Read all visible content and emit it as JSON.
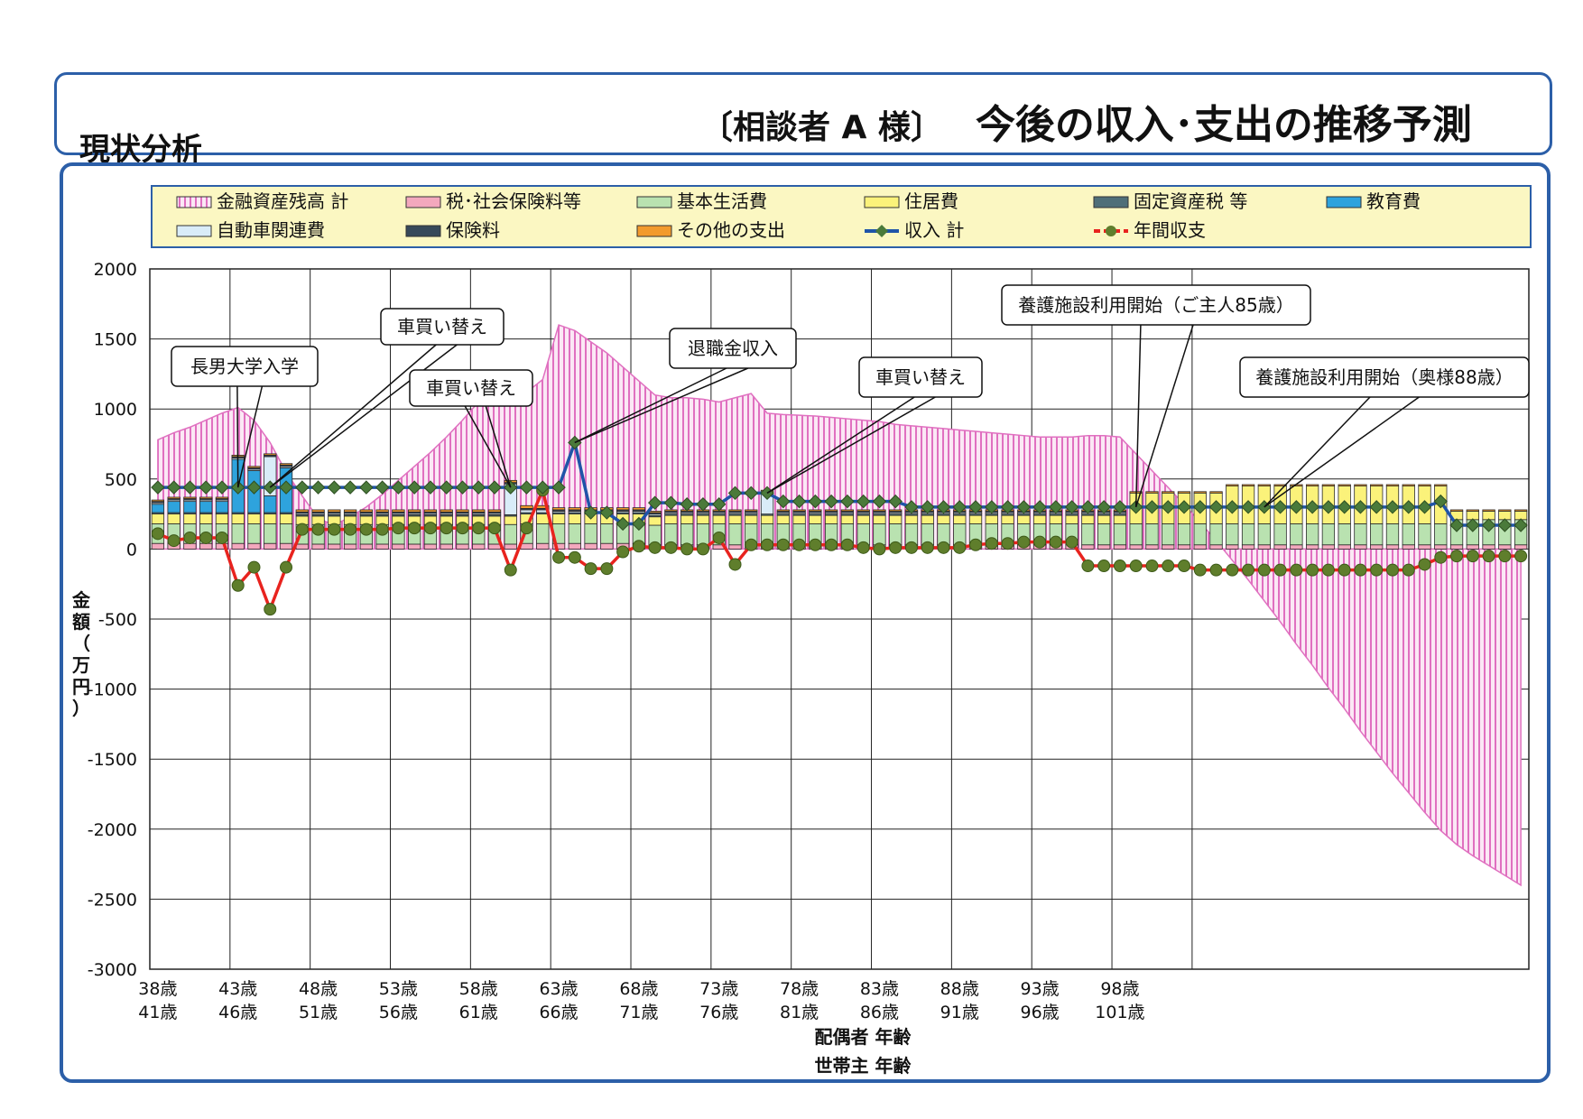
{
  "page": {
    "section_label": "現状分析",
    "title_prefix": "〔相談者 A 様〕",
    "title": "今後の収入･支出の推移予測"
  },
  "colors": {
    "frame": "#2c5fa8",
    "legend_bg": "#fbf7c2",
    "assets": "#e070c0",
    "tax": "#f3a8bd",
    "living": "#b9e2b0",
    "housing": "#fbf27a",
    "property_tax": "#4f6f78",
    "education": "#2ea3dd",
    "car": "#d9ecf8",
    "insurance": "#37495a",
    "other": "#f29a2c",
    "income": "#1f54a8",
    "balance": "#e8231e",
    "marker_income": "#4a7a3a",
    "marker_balance": "#5f7e2c"
  },
  "chart_data": {
    "type": "bar",
    "ylabel": "金額（万円）",
    "ylim": [
      -3000,
      2000
    ],
    "yticks": [
      2000,
      1500,
      1000,
      500,
      0,
      -500,
      -1000,
      -1500,
      -2000,
      -2500,
      -3000
    ],
    "grid": true,
    "legend_position": "top",
    "x_label_spouse": "配偶者 年齢",
    "x_label_head": "世帯主 年齢",
    "x_tick_labels_spouse": [
      "38歳",
      "43歳",
      "48歳",
      "53歳",
      "58歳",
      "63歳",
      "68歳",
      "73歳",
      "78歳",
      "83歳",
      "88歳",
      "93歳",
      "98歳"
    ],
    "x_tick_labels_head": [
      "41歳",
      "46歳",
      "51歳",
      "56歳",
      "61歳",
      "66歳",
      "71歳",
      "76歳",
      "81歳",
      "86歳",
      "91歳",
      "96歳",
      "101歳"
    ],
    "legend": [
      {
        "key": "assets",
        "label": "金融資産残高 計",
        "kind": "area"
      },
      {
        "key": "tax",
        "label": "税･社会保険料等",
        "kind": "bar"
      },
      {
        "key": "living",
        "label": "基本生活費",
        "kind": "bar"
      },
      {
        "key": "housing",
        "label": "住居費",
        "kind": "bar"
      },
      {
        "key": "property_tax",
        "label": "固定資産税 等",
        "kind": "bar"
      },
      {
        "key": "education",
        "label": "教育費",
        "kind": "bar"
      },
      {
        "key": "car",
        "label": "自動車関連費",
        "kind": "bar"
      },
      {
        "key": "insurance",
        "label": "保険料",
        "kind": "bar"
      },
      {
        "key": "other",
        "label": "その他の支出",
        "kind": "bar"
      },
      {
        "key": "income",
        "label": "収入 計",
        "kind": "line"
      },
      {
        "key": "balance",
        "label": "年間収支",
        "kind": "line"
      }
    ],
    "spouse_age_start": 38,
    "series": {
      "assets": [
        780,
        830,
        870,
        920,
        970,
        1010,
        920,
        760,
        550,
        380,
        220,
        170,
        230,
        300,
        390,
        490,
        590,
        690,
        800,
        920,
        1050,
        1150,
        1240,
        1120,
        1210,
        1600,
        1560,
        1480,
        1400,
        1300,
        1200,
        1100,
        1080,
        1080,
        1070,
        1050,
        1080,
        1110,
        970,
        960,
        955,
        950,
        940,
        930,
        920,
        910,
        890,
        880,
        870,
        860,
        850,
        840,
        830,
        820,
        810,
        800,
        800,
        800,
        810,
        810,
        800,
        680,
        560,
        440,
        320,
        190,
        60,
        -80,
        -220,
        -370,
        -520,
        -680,
        -830,
        -990,
        -1140,
        -1300,
        -1450,
        -1600,
        -1740,
        -1880,
        -2010,
        -2110,
        -2190,
        -2260,
        -2330,
        -2400
      ],
      "tax": [
        40,
        40,
        40,
        40,
        40,
        40,
        40,
        40,
        40,
        35,
        35,
        35,
        35,
        35,
        35,
        35,
        35,
        35,
        35,
        35,
        35,
        35,
        35,
        40,
        40,
        40,
        40,
        40,
        40,
        40,
        40,
        30,
        30,
        30,
        30,
        30,
        30,
        30,
        30,
        30,
        30,
        30,
        30,
        30,
        30,
        30,
        30,
        30,
        30,
        30,
        30,
        30,
        30,
        30,
        30,
        30,
        30,
        30,
        30,
        30,
        30,
        30,
        30,
        30,
        30,
        30,
        30,
        30,
        30,
        30,
        30,
        30,
        30,
        30,
        30,
        30,
        30,
        30,
        30,
        30,
        30,
        30,
        30,
        30,
        30,
        30
      ],
      "living": [
        140,
        140,
        140,
        140,
        140,
        140,
        140,
        140,
        140,
        140,
        140,
        140,
        140,
        140,
        140,
        140,
        140,
        140,
        140,
        140,
        140,
        140,
        140,
        140,
        140,
        140,
        140,
        140,
        140,
        140,
        140,
        140,
        150,
        150,
        150,
        150,
        150,
        150,
        150,
        150,
        150,
        150,
        150,
        150,
        150,
        150,
        150,
        150,
        150,
        150,
        150,
        150,
        150,
        150,
        150,
        150,
        150,
        150,
        150,
        150,
        150,
        150,
        150,
        150,
        150,
        150,
        150,
        150,
        150,
        150,
        150,
        150,
        150,
        150,
        150,
        150,
        150,
        150,
        150,
        150,
        150,
        180,
        180,
        180,
        180,
        180
      ],
      "housing": [
        70,
        70,
        70,
        70,
        70,
        70,
        70,
        70,
        70,
        60,
        60,
        60,
        60,
        60,
        60,
        60,
        60,
        60,
        60,
        60,
        60,
        60,
        60,
        70,
        70,
        70,
        70,
        70,
        70,
        70,
        70,
        60,
        60,
        60,
        60,
        60,
        60,
        60,
        60,
        60,
        60,
        60,
        60,
        60,
        60,
        60,
        60,
        60,
        60,
        60,
        60,
        60,
        60,
        60,
        60,
        60,
        60,
        60,
        60,
        60,
        60,
        220,
        220,
        220,
        220,
        220,
        220,
        270,
        270,
        270,
        270,
        270,
        270,
        270,
        270,
        270,
        270,
        270,
        270,
        270,
        270,
        60,
        60,
        60,
        60,
        60
      ],
      "property_tax": [
        10,
        10,
        10,
        10,
        10,
        10,
        10,
        10,
        10,
        10,
        10,
        10,
        10,
        10,
        10,
        10,
        10,
        10,
        10,
        10,
        10,
        10,
        10,
        10,
        10,
        10,
        10,
        10,
        10,
        10,
        10,
        10,
        10,
        10,
        10,
        10,
        10,
        10,
        10,
        10,
        10,
        10,
        10,
        10,
        10,
        10,
        10,
        10,
        10,
        10,
        10,
        10,
        10,
        10,
        10,
        10,
        10,
        10,
        10,
        10,
        10,
        0,
        0,
        0,
        0,
        0,
        0,
        0,
        0,
        0,
        0,
        0,
        0,
        0,
        0,
        0,
        0,
        0,
        0,
        0,
        0,
        0,
        0,
        0,
        0,
        0
      ],
      "education": [
        60,
        80,
        80,
        80,
        80,
        380,
        300,
        120,
        320,
        0,
        0,
        0,
        0,
        0,
        0,
        0,
        0,
        0,
        0,
        0,
        0,
        0,
        0,
        0,
        0,
        0,
        0,
        0,
        0,
        0,
        0,
        0,
        0,
        0,
        0,
        0,
        0,
        0,
        0,
        0,
        0,
        0,
        0,
        0,
        0,
        0,
        0,
        0,
        0,
        0,
        0,
        0,
        0,
        0,
        0,
        0,
        0,
        0,
        0,
        0,
        0,
        0,
        0,
        0,
        0,
        0,
        0,
        0,
        0,
        0,
        0,
        0,
        0,
        0,
        0,
        0,
        0,
        0,
        0,
        0,
        0,
        0,
        0,
        0,
        0,
        0
      ],
      "car": [
        10,
        10,
        10,
        10,
        10,
        10,
        10,
        280,
        10,
        10,
        10,
        10,
        10,
        10,
        10,
        10,
        10,
        10,
        10,
        10,
        10,
        10,
        220,
        20,
        20,
        10,
        10,
        10,
        10,
        10,
        10,
        10,
        10,
        10,
        10,
        10,
        10,
        10,
        150,
        10,
        10,
        10,
        10,
        10,
        10,
        10,
        10,
        10,
        10,
        10,
        10,
        10,
        10,
        10,
        10,
        10,
        10,
        10,
        10,
        10,
        10,
        0,
        0,
        0,
        0,
        0,
        0,
        0,
        0,
        0,
        0,
        0,
        0,
        0,
        0,
        0,
        0,
        0,
        0,
        0,
        0,
        0,
        0,
        0,
        0,
        0
      ],
      "insurance": [
        10,
        10,
        10,
        10,
        10,
        10,
        10,
        10,
        10,
        10,
        10,
        10,
        10,
        10,
        10,
        10,
        10,
        10,
        10,
        10,
        10,
        10,
        10,
        10,
        10,
        10,
        10,
        10,
        10,
        10,
        10,
        10,
        10,
        10,
        10,
        10,
        10,
        10,
        10,
        10,
        10,
        10,
        10,
        10,
        10,
        10,
        10,
        10,
        10,
        10,
        10,
        10,
        10,
        10,
        10,
        10,
        10,
        10,
        10,
        10,
        10,
        0,
        0,
        0,
        0,
        0,
        0,
        0,
        0,
        0,
        0,
        0,
        0,
        0,
        0,
        0,
        0,
        0,
        0,
        0,
        0,
        0,
        0,
        0,
        0,
        0
      ],
      "other": [
        10,
        10,
        10,
        10,
        10,
        10,
        10,
        10,
        10,
        15,
        15,
        15,
        15,
        15,
        15,
        15,
        15,
        15,
        15,
        15,
        15,
        15,
        15,
        20,
        20,
        15,
        15,
        15,
        15,
        15,
        15,
        10,
        10,
        10,
        10,
        10,
        10,
        10,
        10,
        10,
        10,
        10,
        10,
        10,
        10,
        10,
        10,
        10,
        10,
        10,
        10,
        10,
        10,
        10,
        10,
        10,
        10,
        10,
        10,
        10,
        10,
        10,
        10,
        10,
        10,
        10,
        10,
        10,
        10,
        10,
        10,
        10,
        10,
        10,
        10,
        10,
        10,
        10,
        10,
        10,
        10,
        10,
        10,
        10,
        10,
        10
      ],
      "income": [
        440,
        440,
        440,
        440,
        440,
        440,
        440,
        440,
        440,
        440,
        440,
        440,
        440,
        440,
        440,
        440,
        440,
        440,
        440,
        440,
        440,
        440,
        440,
        440,
        440,
        440,
        760,
        260,
        260,
        180,
        180,
        330,
        330,
        320,
        320,
        320,
        400,
        400,
        400,
        340,
        340,
        340,
        340,
        340,
        340,
        340,
        340,
        300,
        300,
        300,
        300,
        300,
        300,
        300,
        300,
        300,
        300,
        300,
        300,
        300,
        300,
        300,
        300,
        300,
        300,
        300,
        300,
        300,
        300,
        300,
        300,
        300,
        300,
        300,
        300,
        300,
        300,
        300,
        300,
        300,
        340,
        170,
        170,
        170,
        170,
        170
      ],
      "balance": [
        110,
        60,
        80,
        80,
        80,
        -260,
        -130,
        -430,
        -130,
        140,
        140,
        140,
        140,
        140,
        140,
        150,
        150,
        150,
        150,
        150,
        150,
        150,
        -150,
        150,
        420,
        -60,
        -60,
        -140,
        -140,
        -20,
        20,
        10,
        10,
        0,
        0,
        80,
        -110,
        30,
        30,
        30,
        30,
        30,
        30,
        30,
        10,
        0,
        10,
        10,
        10,
        10,
        10,
        30,
        40,
        40,
        50,
        50,
        50,
        50,
        -120,
        -120,
        -120,
        -120,
        -120,
        -120,
        -120,
        -150,
        -150,
        -150,
        -150,
        -150,
        -150,
        -150,
        -150,
        -150,
        -150,
        -150,
        -150,
        -150,
        -150,
        -110,
        -60,
        -50,
        -50,
        -50,
        -50,
        -50
      ]
    },
    "annotations": [
      {
        "label": "長男大学入学",
        "target_index": 5,
        "target_value": 440
      },
      {
        "label": "車買い替え",
        "target_index": 7,
        "target_value": 440
      },
      {
        "label": "車買い替え",
        "target_index": 22,
        "target_value": 440
      },
      {
        "label": "退職金収入",
        "target_index": 26,
        "target_value": 760
      },
      {
        "label": "車買い替え",
        "target_index": 38,
        "target_value": 400
      },
      {
        "label": "養護施設利用開始（ご主人85歳）",
        "target_index": 61,
        "target_value": 300
      },
      {
        "label": "養護施設利用開始（奥様88歳）",
        "target_index": 69,
        "target_value": 300
      }
    ]
  }
}
